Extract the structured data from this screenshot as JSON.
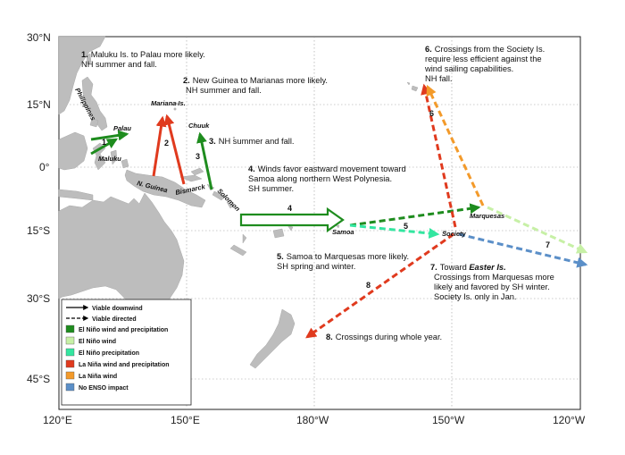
{
  "colors": {
    "land": "#bdbdbd",
    "el_nino_wind_precip": "#1e8c1e",
    "el_nino_wind": "#c7f0a6",
    "el_nino_precip": "#33e6a0",
    "la_nina_wind_precip": "#e03a1e",
    "la_nina_wind": "#f39a2a",
    "no_enso": "#5b8fc8"
  },
  "axes": {
    "lat_labels": [
      "30°N",
      "15°N",
      "0°",
      "15°S",
      "30°S",
      "45°S"
    ],
    "lon_labels": [
      "120°E",
      "150°E",
      "180°W",
      "150°W",
      "120°W"
    ],
    "grid": true
  },
  "places": {
    "philippines": "Philippines",
    "palau": "Palau",
    "maluku": "Maluku",
    "mariana": "Mariana Is.",
    "chuuk": "Chuuk",
    "new_guinea": "N. Guinea",
    "bismarck": "Bismarck",
    "solomon": "Solomon",
    "samoa": "Samoa",
    "society": "Society",
    "marquesas": "Marquesas"
  },
  "routes": {
    "r1": "1",
    "r2": "2",
    "r3": "3",
    "r4": "4",
    "r5": "5",
    "r6": "6",
    "r7": "7",
    "r8": "8"
  },
  "annotations": {
    "a1_num": "1.",
    "a1_l1": "Maluku Is. to Palau  more  likely.",
    "a1_l2": "NH summer and fall.",
    "a2_num": "2.",
    "a2_l1": "New Guinea to Marianas more likely.",
    "a2_l2": "NH summer and fall.",
    "a3_num": "3.",
    "a3_l1": "NH summer and fall.",
    "a4_num": "4.",
    "a4_l1": "Winds favor eastward movement toward",
    "a4_l2": "Samoa along northern West Polynesia.",
    "a4_l3": "SH summer.",
    "a5_num": "5.",
    "a5_l1": "Samoa to Marquesas more likely.",
    "a5_l2": "SH spring and winter.",
    "a6_num": "6.",
    "a6_l1": "Crossings from the Society Is.",
    "a6_l2": "require less efficient against the",
    "a6_l3": "wind sailing  capabilities.",
    "a6_l4": "NH fall.",
    "a7_num": "7.",
    "a7_l1a": "Toward ",
    "a7_l1b": "Easter Is.",
    "a7_l2": "Crossings from Marquesas more",
    "a7_l3": "likely and favored by SH winter.",
    "a7_l4": "Society Is.  only in Jan.",
    "a8_num": "8.",
    "a8_l1": "Crossings during whole year."
  },
  "legend": {
    "viable_downwind": "Viable downwind",
    "viable_directed": "Viable directed",
    "el_nino_wind_precip": "El Niño wind and precipitation",
    "el_nino_wind": "El Niño wind",
    "el_nino_precip": "El Niño precipitation",
    "la_nina_wind_precip": "La Niña wind and precipitation",
    "la_nina_wind": "La Niña wind",
    "no_enso": "No ENSO impact"
  }
}
